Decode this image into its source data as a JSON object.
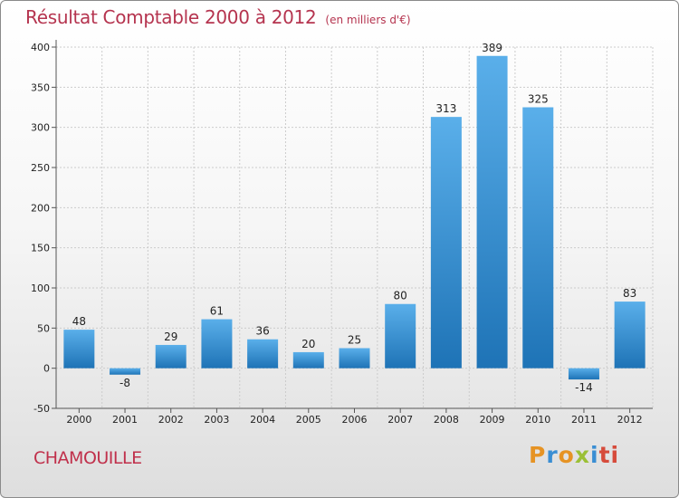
{
  "title": "Résultat Comptable 2000 à 2012",
  "unit_note": "(en milliers d'€)",
  "commune": "CHAMOUILLE",
  "logo": {
    "p": "P",
    "r": "r",
    "o": "o",
    "x": "x",
    "i": "i",
    "ti": "ti"
  },
  "colors": {
    "bar_top": "#5aafea",
    "bar_bottom": "#1e73b6",
    "title": "#b5344f",
    "grid": "#cccccc"
  },
  "chart_data": {
    "type": "bar",
    "categories": [
      "2000",
      "2001",
      "2002",
      "2003",
      "2004",
      "2005",
      "2006",
      "2007",
      "2008",
      "2009",
      "2010",
      "2011",
      "2012"
    ],
    "values": [
      48,
      -8,
      29,
      61,
      36,
      20,
      25,
      80,
      313,
      389,
      325,
      -14,
      83
    ],
    "title": "Résultat Comptable 2000 à 2012",
    "ylim": [
      -50,
      400
    ],
    "yticks": [
      -50,
      0,
      50,
      100,
      150,
      200,
      250,
      300,
      350,
      400
    ],
    "grid": true
  }
}
